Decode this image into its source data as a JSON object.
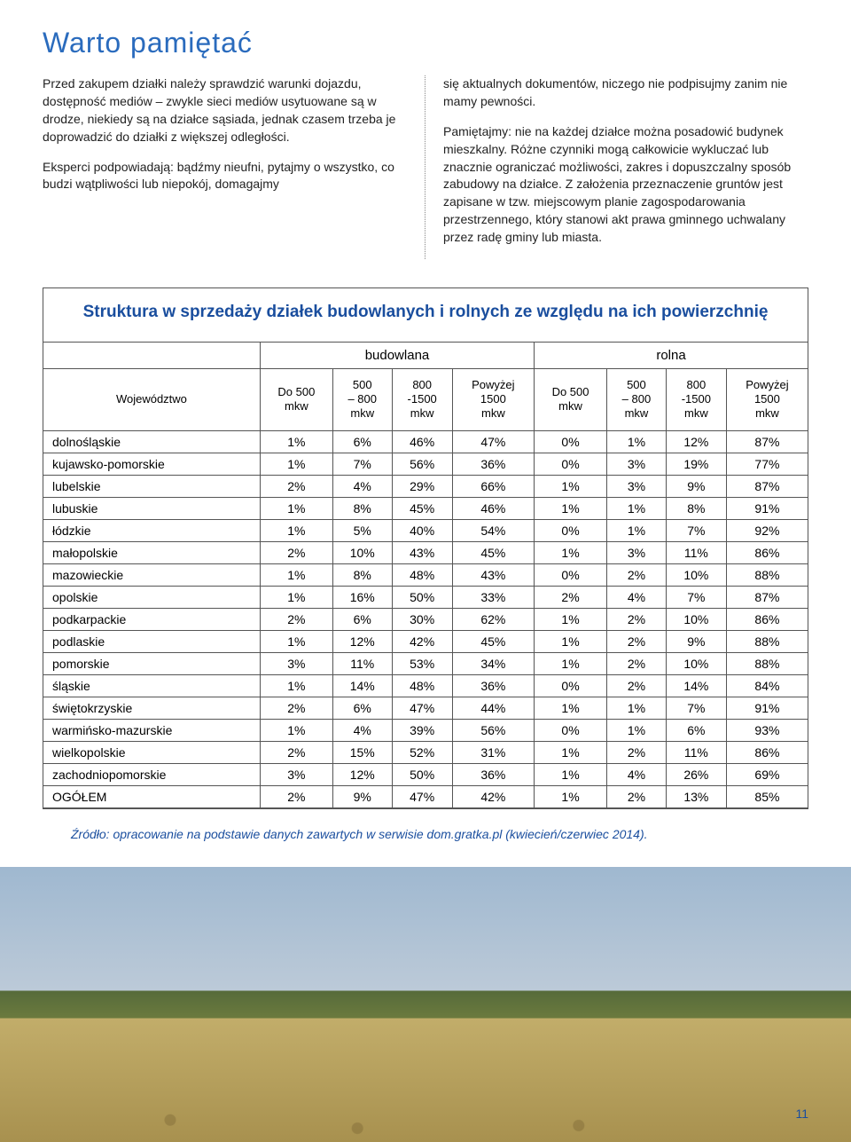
{
  "heading": {
    "text": "Warto pamiętać",
    "color": "#2a6bbd"
  },
  "left_paras": [
    "Przed zakupem działki należy sprawdzić warunki dojazdu, dostępność mediów – zwykle sieci mediów usytuowane są w drodze, niekiedy są na działce sąsiada, jednak czasem trzeba je doprowadzić do działki z większej odległości.",
    "Eksperci podpowiadają: bądźmy nieufni, pytajmy o wszystko, co budzi wątpliwości lub niepokój, domagajmy"
  ],
  "right_paras": [
    "się aktualnych dokumentów, niczego nie podpisujmy zanim nie mamy pewności.",
    "Pamiętajmy: nie na każdej działce można posadowić budynek mieszkalny. Różne czynniki mogą całkowicie wykluczać lub znacznie ograniczać możliwości, zakres i dopuszczalny sposób zabudowy na działce. Z założenia przeznaczenie gruntów jest zapisane w tzw. miejscowym planie zagospodarowania przestrzennego, który stanowi akt prawa gminnego uchwalany przez radę gminy lub miasta."
  ],
  "table": {
    "title": "Struktura w sprzedaży działek budowlanych i rolnych ze względu na ich powierzchnię",
    "title_color": "#1a4e9e",
    "group_headers": [
      "budowlana",
      "rolna"
    ],
    "row_header": "Województwo",
    "col_headers": [
      "Do 500\nmkw",
      "500\n– 800\nmkw",
      "800\n-1500\nmkw",
      "Powyżej\n1500\nmkw",
      "Do 500\nmkw",
      "500\n– 800\nmkw",
      "800\n-1500\nmkw",
      "Powyżej\n1500\nmkw"
    ],
    "rows": [
      [
        "dolnośląskie",
        "1%",
        "6%",
        "46%",
        "47%",
        "0%",
        "1%",
        "12%",
        "87%"
      ],
      [
        "kujawsko-pomorskie",
        "1%",
        "7%",
        "56%",
        "36%",
        "0%",
        "3%",
        "19%",
        "77%"
      ],
      [
        "lubelskie",
        "2%",
        "4%",
        "29%",
        "66%",
        "1%",
        "3%",
        "9%",
        "87%"
      ],
      [
        "lubuskie",
        "1%",
        "8%",
        "45%",
        "46%",
        "1%",
        "1%",
        "8%",
        "91%"
      ],
      [
        "łódzkie",
        "1%",
        "5%",
        "40%",
        "54%",
        "0%",
        "1%",
        "7%",
        "92%"
      ],
      [
        "małopolskie",
        "2%",
        "10%",
        "43%",
        "45%",
        "1%",
        "3%",
        "11%",
        "86%"
      ],
      [
        "mazowieckie",
        "1%",
        "8%",
        "48%",
        "43%",
        "0%",
        "2%",
        "10%",
        "88%"
      ],
      [
        "opolskie",
        "1%",
        "16%",
        "50%",
        "33%",
        "2%",
        "4%",
        "7%",
        "87%"
      ],
      [
        "podkarpackie",
        "2%",
        "6%",
        "30%",
        "62%",
        "1%",
        "2%",
        "10%",
        "86%"
      ],
      [
        "podlaskie",
        "1%",
        "12%",
        "42%",
        "45%",
        "1%",
        "2%",
        "9%",
        "88%"
      ],
      [
        "pomorskie",
        "3%",
        "11%",
        "53%",
        "34%",
        "1%",
        "2%",
        "10%",
        "88%"
      ],
      [
        "śląskie",
        "1%",
        "14%",
        "48%",
        "36%",
        "0%",
        "2%",
        "14%",
        "84%"
      ],
      [
        "świętokrzyskie",
        "2%",
        "6%",
        "47%",
        "44%",
        "1%",
        "1%",
        "7%",
        "91%"
      ],
      [
        "warmińsko-mazurskie",
        "1%",
        "4%",
        "39%",
        "56%",
        "0%",
        "1%",
        "6%",
        "93%"
      ],
      [
        "wielkopolskie",
        "2%",
        "15%",
        "52%",
        "31%",
        "1%",
        "2%",
        "11%",
        "86%"
      ],
      [
        "zachodniopomorskie",
        "3%",
        "12%",
        "50%",
        "36%",
        "1%",
        "4%",
        "26%",
        "69%"
      ],
      [
        "OGÓŁEM",
        "2%",
        "9%",
        "47%",
        "42%",
        "1%",
        "2%",
        "13%",
        "85%"
      ]
    ],
    "border_color": "#555555",
    "bg_color": "rgba(255,255,255,0.82)"
  },
  "source": {
    "text": "Źródło: opracowanie na podstawie danych zawartych w serwisie dom.gratka.pl (kwiecień/czerwiec 2014).",
    "color": "#1a4e9e"
  },
  "page_number": "11"
}
